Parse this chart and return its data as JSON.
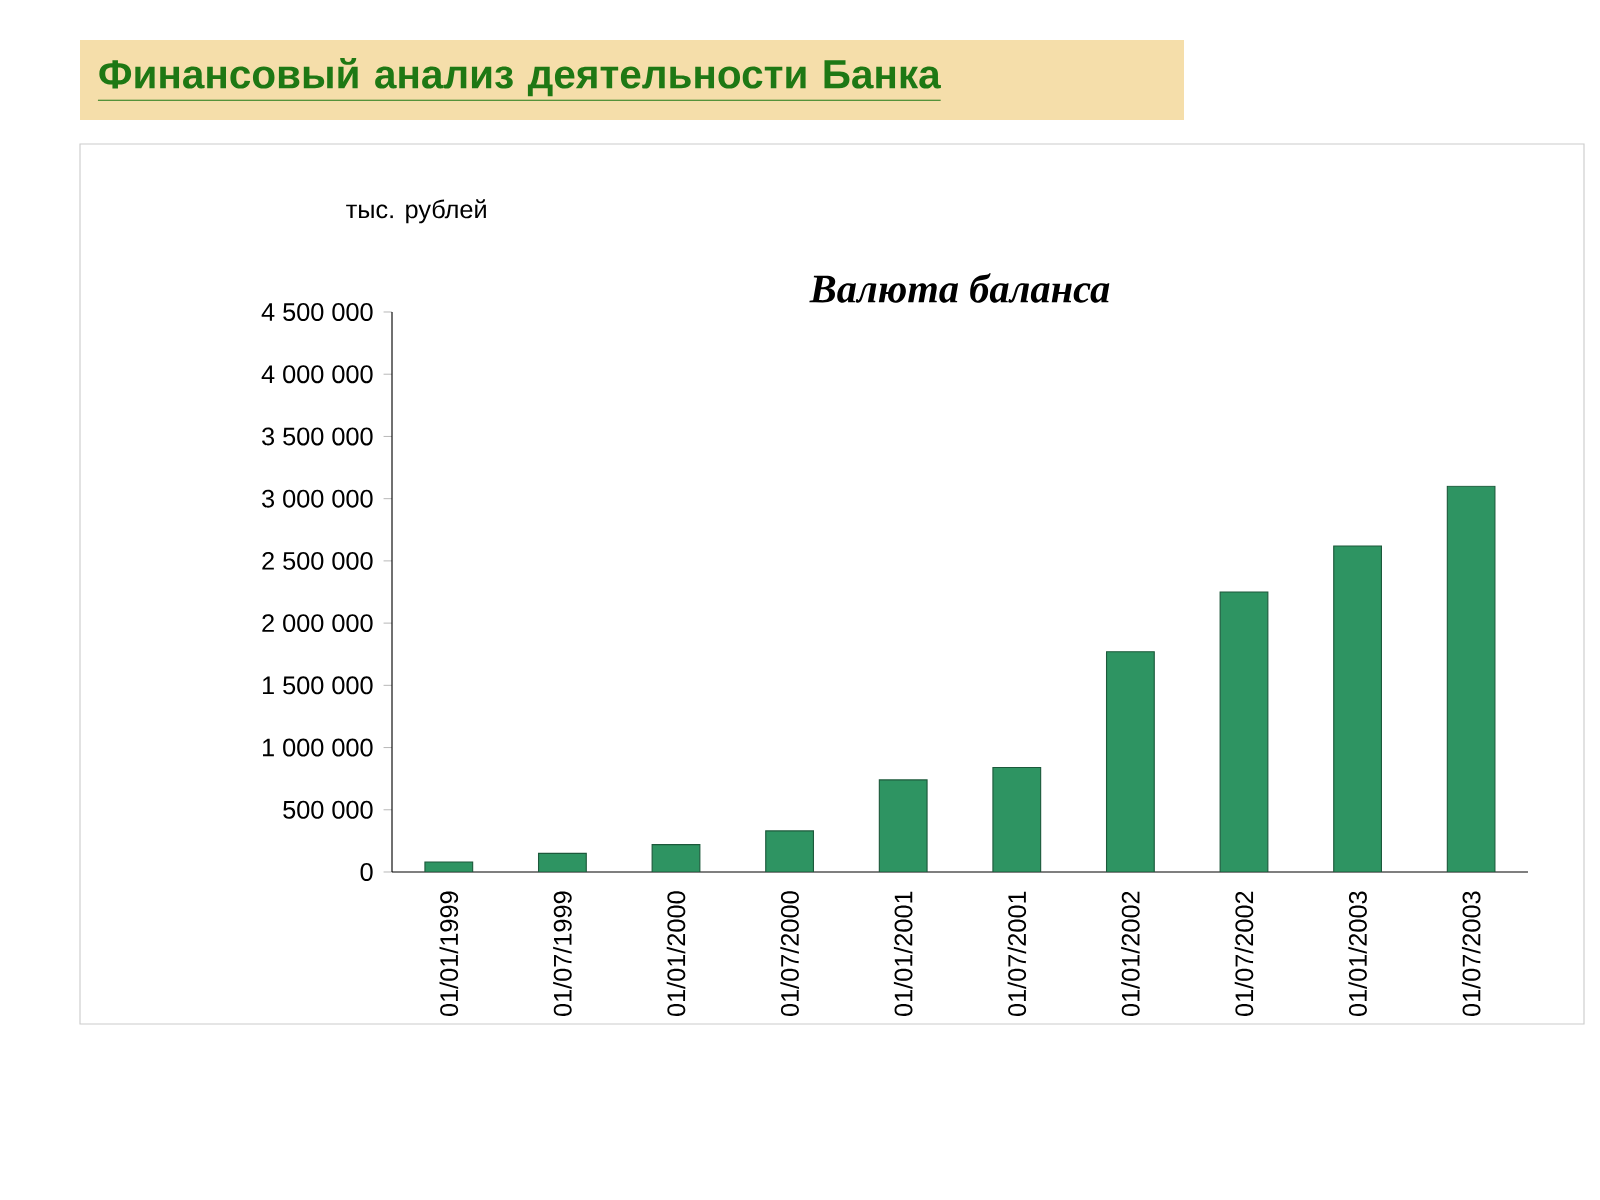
{
  "chart_data": {
    "type": "bar",
    "title": "Финансовый анализ деятельности Банка",
    "subtitle": "Валюта баланса",
    "ylabel": "тыс. рублей",
    "categories": [
      "01/01/1999",
      "01/07/1999",
      "01/01/2000",
      "01/07/2000",
      "01/01/2001",
      "01/07/2001",
      "01/01/2002",
      "01/07/2002",
      "01/01/2003",
      "01/07/2003"
    ],
    "values": [
      80000,
      150000,
      220000,
      330000,
      740000,
      840000,
      1770000,
      2250000,
      2620000,
      3100000
    ],
    "color": "#2e9462",
    "ylim": [
      0,
      4500000
    ],
    "yticks": [
      0,
      {
        "value": 500000,
        "label": "500 000"
      },
      {
        "value": 1000000,
        "label": "1 000 000"
      },
      {
        "value": 1500000,
        "label": "1 500 000"
      },
      {
        "value": 2000000,
        "label": "2 000 000"
      },
      {
        "value": 2500000,
        "label": "2 500 000"
      },
      {
        "value": 3000000,
        "label": "3 000 000"
      },
      {
        "value": 3500000,
        "label": "3 500 000"
      },
      {
        "value": 4000000,
        "label": "4 000 000"
      },
      {
        "value": 4500000,
        "label": "4 500 000"
      }
    ]
  }
}
